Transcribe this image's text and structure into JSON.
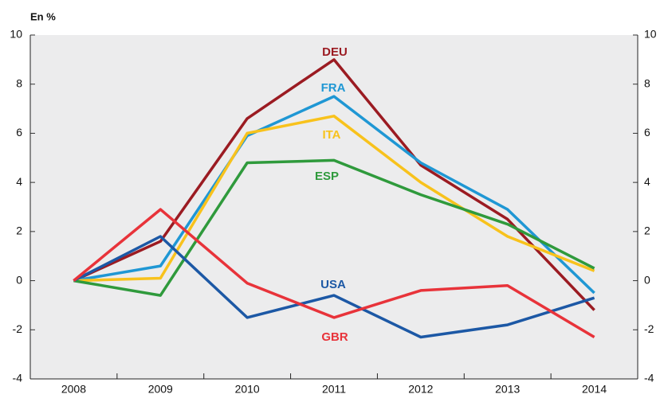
{
  "chart_data": {
    "type": "line",
    "y_label": "En %",
    "categories": [
      "2008",
      "2009",
      "2010",
      "2011",
      "2012",
      "2013",
      "2014"
    ],
    "series": [
      {
        "name": "DEU",
        "color": "#9b1b22",
        "values": [
          0,
          1.6,
          6.6,
          9.0,
          4.7,
          2.5,
          -1.2
        ]
      },
      {
        "name": "FRA",
        "color": "#1f97d4",
        "values": [
          0,
          0.6,
          5.9,
          7.5,
          4.8,
          2.9,
          -0.5
        ]
      },
      {
        "name": "ITA",
        "color": "#f8c21c",
        "values": [
          0,
          0.1,
          6.0,
          6.7,
          4.0,
          1.8,
          0.4
        ]
      },
      {
        "name": "ESP",
        "color": "#2f9a3c",
        "values": [
          0,
          -0.6,
          4.8,
          4.9,
          3.5,
          2.3,
          0.5
        ]
      },
      {
        "name": "USA",
        "color": "#1c58a5",
        "values": [
          0,
          1.8,
          -1.5,
          -0.6,
          -2.3,
          -1.8,
          -0.7
        ]
      },
      {
        "name": "GBR",
        "color": "#e8333a",
        "values": [
          0,
          2.9,
          -0.1,
          -1.5,
          -0.4,
          -0.2,
          -2.3
        ]
      }
    ],
    "ylim": [
      -4,
      10
    ],
    "yticks": [
      -4,
      -2,
      0,
      2,
      4,
      6,
      8,
      10
    ],
    "y2lim": [
      -4,
      10
    ],
    "y2ticks": [
      -4,
      -2,
      0,
      2,
      4,
      6,
      8,
      10
    ]
  }
}
